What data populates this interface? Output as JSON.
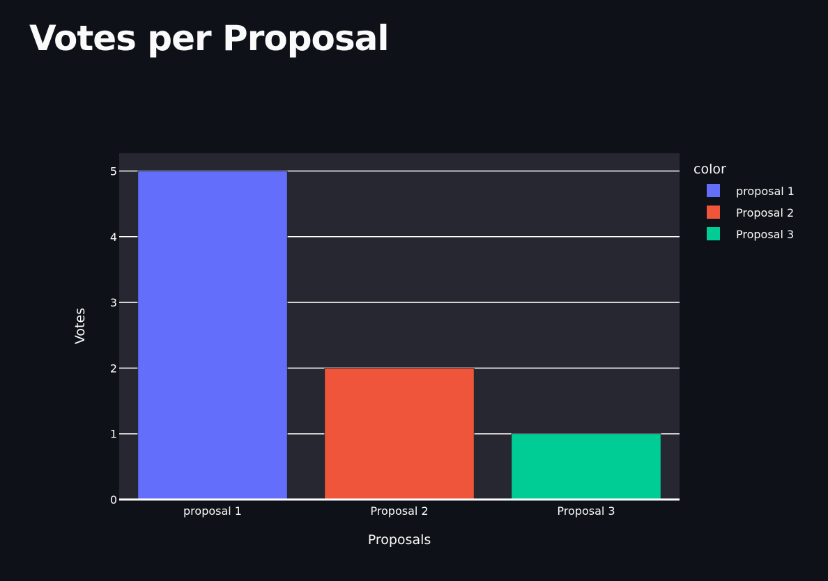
{
  "page": {
    "title": "Votes per Proposal"
  },
  "chart_data": {
    "type": "bar",
    "categories": [
      "proposal 1",
      "Proposal 2",
      "Proposal 3"
    ],
    "values": [
      5,
      2,
      1
    ],
    "series": [
      {
        "name": "proposal 1",
        "category": "proposal 1",
        "value": 5,
        "color": "#636efa"
      },
      {
        "name": "Proposal 2",
        "category": "Proposal 2",
        "value": 2,
        "color": "#ef553b"
      },
      {
        "name": "Proposal 3",
        "category": "Proposal 3",
        "value": 1,
        "color": "#00cc96"
      }
    ],
    "title": "",
    "xlabel": "Proposals",
    "ylabel": "Votes",
    "ylim": [
      0,
      5.27
    ],
    "yticks": [
      0,
      1,
      2,
      3,
      4,
      5
    ],
    "grid": true,
    "legend_title": "color",
    "legend_position": "top-right",
    "plot_background": "#262730",
    "page_background": "#0e1117",
    "text_color": "#fafafa"
  }
}
